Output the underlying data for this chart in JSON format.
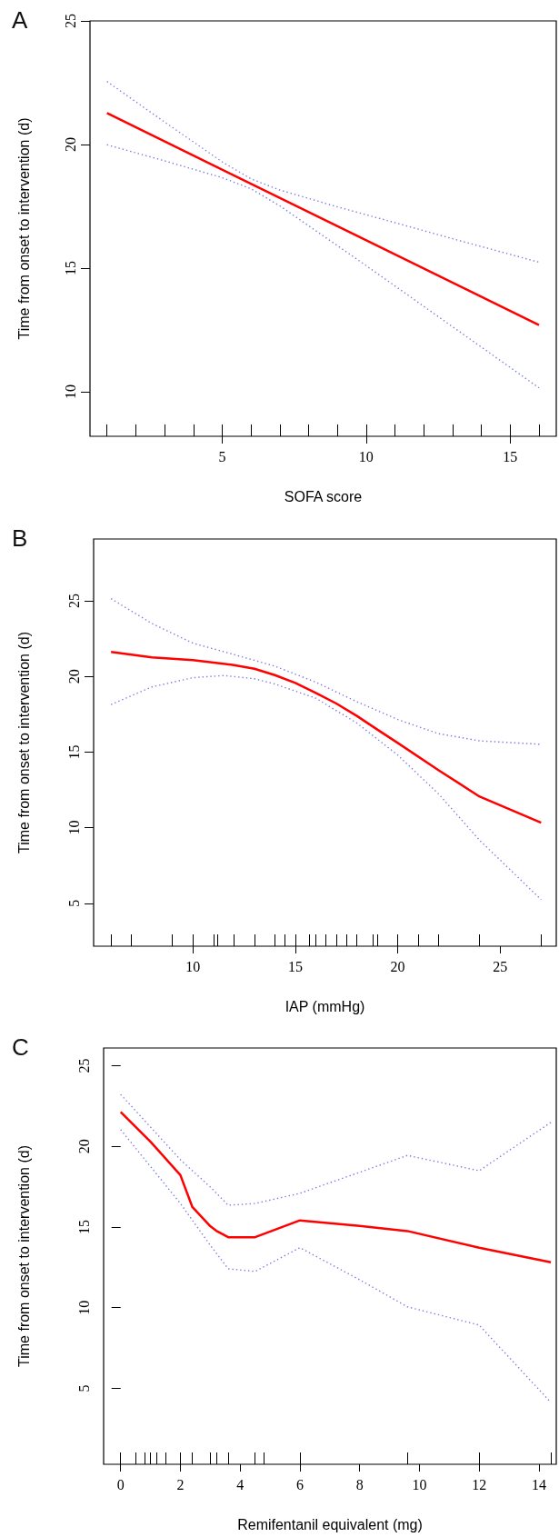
{
  "chart_data": [
    {
      "type": "line",
      "title": "A",
      "xlabel": "SOFA score",
      "ylabel": "Time from onset to intervention (d)",
      "xlim": [
        0.41,
        16.6
      ],
      "ylim": [
        8.2,
        25
      ],
      "xticks": [
        5,
        10,
        15,
        {
          "value": 1,
          "label": null
        },
        {
          "value": 2,
          "label": null
        },
        {
          "value": 3,
          "label": null
        },
        {
          "value": 4,
          "label": null
        },
        {
          "value": 5,
          "label": null
        },
        {
          "value": 6,
          "label": null
        },
        {
          "value": 7,
          "label": null
        },
        {
          "value": 8,
          "label": null
        },
        {
          "value": 9,
          "label": null
        },
        {
          "value": 10,
          "label": null
        },
        {
          "value": 11,
          "label": null
        },
        {
          "value": 12,
          "label": null
        },
        {
          "value": 13,
          "label": null
        },
        {
          "value": 14,
          "label": null
        },
        {
          "value": 15,
          "label": null
        },
        {
          "value": 16,
          "label": null
        }
      ],
      "yticks": [
        10,
        15,
        20,
        25
      ],
      "series": [
        {
          "color": "#ff0000",
          "line_style": "solid",
          "x": [
            1,
            16
          ],
          "values": [
            21.27,
            12.7
          ]
        },
        {
          "color": "#7b7be0",
          "line_style": "dotted",
          "x": [
            1,
            3,
            5,
            6,
            7,
            9,
            10,
            11,
            13,
            16
          ],
          "values": [
            22.55,
            20.91,
            19.3,
            18.61,
            18.16,
            17.48,
            17.16,
            16.84,
            16.19,
            15.24
          ]
        },
        {
          "color": "#7b7be0",
          "line_style": "dotted",
          "x": [
            1,
            3,
            5,
            6,
            7,
            9,
            10,
            11,
            13,
            16
          ],
          "values": [
            19.99,
            19.34,
            18.66,
            18.21,
            17.52,
            15.91,
            15.1,
            14.28,
            12.63,
            10.16
          ]
        }
      ]
    },
    {
      "type": "line",
      "title": "B",
      "xlabel": "IAP (mmHg)",
      "ylabel": "Time from onset to intervention (d)",
      "xlim": [
        5.15,
        27.74
      ],
      "ylim": [
        2.16,
        29.09
      ],
      "xticks": [
        10,
        15,
        20,
        25,
        {
          "value": 6,
          "label": null
        },
        {
          "value": 7,
          "label": null
        },
        {
          "value": 9,
          "label": null
        },
        {
          "value": 10,
          "label": null
        },
        {
          "value": 11,
          "label": null
        },
        {
          "value": 11.2,
          "label": null
        },
        {
          "value": 12,
          "label": null
        },
        {
          "value": 13,
          "label": null
        },
        {
          "value": 14,
          "label": null
        },
        {
          "value": 14.5,
          "label": null
        },
        {
          "value": 15,
          "label": null
        },
        {
          "value": 15.7,
          "label": null
        },
        {
          "value": 16,
          "label": null
        },
        {
          "value": 16.5,
          "label": null
        },
        {
          "value": 17,
          "label": null
        },
        {
          "value": 17.5,
          "label": null
        },
        {
          "value": 18,
          "label": null
        },
        {
          "value": 18.8,
          "label": null
        },
        {
          "value": 19,
          "label": null
        },
        {
          "value": 20,
          "label": null
        },
        {
          "value": 21,
          "label": null
        },
        {
          "value": 22,
          "label": null
        },
        {
          "value": 24,
          "label": null
        },
        {
          "value": 27,
          "label": null
        }
      ],
      "yticks": [
        5,
        10,
        15,
        20,
        25
      ],
      "series": [
        {
          "color": "#ff0000",
          "line_style": "solid",
          "x": [
            6,
            8,
            10,
            12,
            13,
            14,
            15,
            16,
            17,
            18,
            19,
            20,
            22,
            24,
            27
          ],
          "values": [
            21.62,
            21.26,
            21.08,
            20.75,
            20.51,
            20.09,
            19.57,
            18.91,
            18.21,
            17.39,
            16.49,
            15.6,
            13.79,
            12.05,
            10.33
          ]
        },
        {
          "color": "#7b7be0",
          "line_style": "dotted",
          "x": [
            6,
            8,
            10,
            12,
            14,
            16,
            18,
            20,
            22,
            24,
            27
          ],
          "values": [
            25.14,
            23.5,
            22.2,
            21.45,
            20.68,
            19.62,
            18.33,
            17.15,
            16.21,
            15.74,
            15.51
          ]
        },
        {
          "color": "#7b7be0",
          "line_style": "dotted",
          "x": [
            6,
            8,
            10,
            11.5,
            13,
            14,
            16,
            18,
            20,
            22,
            24,
            27
          ],
          "values": [
            18.14,
            19.31,
            19.92,
            20.06,
            19.85,
            19.5,
            18.56,
            16.92,
            14.8,
            12.22,
            9.16,
            5.24
          ]
        }
      ]
    },
    {
      "type": "line",
      "title": "C",
      "xlabel": "Remifentanil equivalent (mg)",
      "ylabel": "Time from onset to intervention (d)",
      "xlim": [
        -0.57,
        14.58
      ],
      "ylim": [
        0.29,
        26.1
      ],
      "xticks": [
        0,
        2,
        4,
        6,
        8,
        10,
        12,
        14,
        {
          "value": 0,
          "label": null
        },
        {
          "value": 0.5,
          "label": null
        },
        {
          "value": 0.8,
          "label": null
        },
        {
          "value": 1,
          "label": null
        },
        {
          "value": 1.2,
          "label": null
        },
        {
          "value": 1.5,
          "label": null
        },
        {
          "value": 2,
          "label": null
        },
        {
          "value": 2.4,
          "label": null
        },
        {
          "value": 3,
          "label": null
        },
        {
          "value": 3.2,
          "label": null
        },
        {
          "value": 3.6,
          "label": null
        },
        {
          "value": 4.5,
          "label": null
        },
        {
          "value": 4.8,
          "label": null
        },
        {
          "value": 6,
          "label": null
        },
        {
          "value": 9.6,
          "label": null
        },
        {
          "value": 12,
          "label": null
        },
        {
          "value": 14.4,
          "label": null
        }
      ],
      "yticks": [
        5,
        10,
        15,
        20,
        25
      ],
      "series": [
        {
          "color": "#ff0000",
          "line_style": "solid",
          "x": [
            0,
            1,
            2,
            2.4,
            3,
            3.2,
            3.6,
            4.5,
            6,
            8,
            9.6,
            12,
            14.4
          ],
          "values": [
            22.14,
            20.29,
            18.22,
            16.24,
            15.05,
            14.77,
            14.37,
            14.37,
            15.41,
            15.07,
            14.75,
            13.72,
            12.82
          ]
        },
        {
          "color": "#7b7be0",
          "line_style": "dotted",
          "x": [
            0,
            2,
            3,
            3.6,
            4.5,
            6,
            9.6,
            12,
            14.4
          ],
          "values": [
            23.22,
            19.17,
            17.48,
            16.35,
            16.46,
            17.09,
            19.44,
            18.49,
            21.49
          ]
        },
        {
          "color": "#7b7be0",
          "line_style": "dotted",
          "x": [
            0,
            2,
            3,
            3.6,
            4.5,
            6,
            8,
            9.6,
            12,
            14.4
          ],
          "values": [
            21.04,
            16.46,
            13.87,
            12.41,
            12.25,
            13.72,
            11.73,
            10.05,
            8.92,
            4.12
          ]
        }
      ]
    }
  ]
}
